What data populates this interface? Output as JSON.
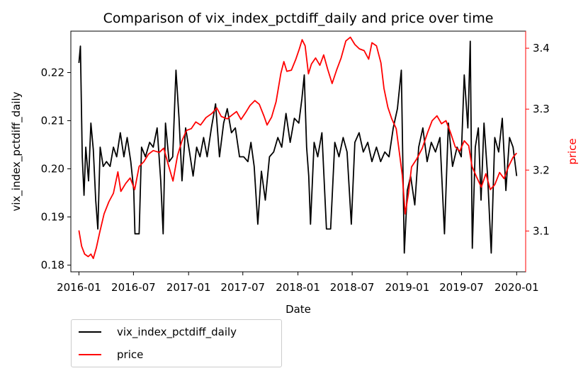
{
  "chart_data": {
    "type": "line",
    "title": "Comparison of vix_index_pctdiff_daily and price over time",
    "xlabel": "Date",
    "ylabel_left": "vix_index_pctdiff_daily",
    "ylabel_right": "price",
    "x_ticks": [
      "2016-01",
      "2016-07",
      "2017-01",
      "2017-07",
      "2018-01",
      "2018-07",
      "2019-01",
      "2019-07",
      "2020-01"
    ],
    "y_left_ticks": [
      "0.18",
      "0.19",
      "0.20",
      "0.21",
      "0.22"
    ],
    "y_right_ticks": [
      "3.1",
      "3.2",
      "3.3",
      "3.4"
    ],
    "x_range": [
      "2015-12-05",
      "2020-01-31"
    ],
    "y_left_range": [
      0.1786,
      0.2286
    ],
    "y_right_range": [
      3.033,
      3.428
    ],
    "legend_position": "below-left",
    "grid": false,
    "colors": {
      "vix_index_pctdiff_daily": "#000000",
      "price": "#ff0000",
      "right_axis": "#ff0000"
    },
    "series": [
      {
        "name": "vix_index_pctdiff_daily",
        "axis": "left",
        "color": "#000000",
        "points": [
          [
            "2016-01-01",
            0.222
          ],
          [
            "2016-01-06",
            0.2255
          ],
          [
            "2016-01-12",
            0.2025
          ],
          [
            "2016-01-18",
            0.1945
          ],
          [
            "2016-01-24",
            0.2045
          ],
          [
            "2016-02-02",
            0.1975
          ],
          [
            "2016-02-10",
            0.2095
          ],
          [
            "2016-02-18",
            0.204
          ],
          [
            "2016-02-26",
            0.1935
          ],
          [
            "2016-03-04",
            0.1875
          ],
          [
            "2016-03-12",
            0.2045
          ],
          [
            "2016-03-22",
            0.2005
          ],
          [
            "2016-04-02",
            0.2015
          ],
          [
            "2016-04-14",
            0.2005
          ],
          [
            "2016-04-25",
            0.2045
          ],
          [
            "2016-05-06",
            0.2025
          ],
          [
            "2016-05-18",
            0.2075
          ],
          [
            "2016-05-30",
            0.2025
          ],
          [
            "2016-06-10",
            0.2065
          ],
          [
            "2016-06-22",
            0.2015
          ],
          [
            "2016-07-02",
            0.1955
          ],
          [
            "2016-07-06",
            0.1865
          ],
          [
            "2016-07-20",
            0.1865
          ],
          [
            "2016-07-28",
            0.2045
          ],
          [
            "2016-08-10",
            0.2025
          ],
          [
            "2016-08-24",
            0.2055
          ],
          [
            "2016-09-05",
            0.2045
          ],
          [
            "2016-09-18",
            0.2085
          ],
          [
            "2016-09-30",
            0.1975
          ],
          [
            "2016-10-08",
            0.1865
          ],
          [
            "2016-10-16",
            0.2095
          ],
          [
            "2016-10-28",
            0.2015
          ],
          [
            "2016-11-09",
            0.2025
          ],
          [
            "2016-11-20",
            0.2205
          ],
          [
            "2016-11-30",
            0.2105
          ],
          [
            "2016-12-10",
            0.1975
          ],
          [
            "2016-12-22",
            0.2085
          ],
          [
            "2017-01-04",
            0.2035
          ],
          [
            "2017-01-16",
            0.1985
          ],
          [
            "2017-01-28",
            0.2045
          ],
          [
            "2017-02-08",
            0.2025
          ],
          [
            "2017-02-20",
            0.2065
          ],
          [
            "2017-03-04",
            0.2025
          ],
          [
            "2017-03-18",
            0.2085
          ],
          [
            "2017-04-01",
            0.2135
          ],
          [
            "2017-04-14",
            0.2025
          ],
          [
            "2017-04-28",
            0.2095
          ],
          [
            "2017-05-10",
            0.2125
          ],
          [
            "2017-05-24",
            0.2075
          ],
          [
            "2017-06-06",
            0.2085
          ],
          [
            "2017-06-20",
            0.2025
          ],
          [
            "2017-07-04",
            0.2025
          ],
          [
            "2017-07-18",
            0.2015
          ],
          [
            "2017-07-28",
            0.2055
          ],
          [
            "2017-08-08",
            0.2005
          ],
          [
            "2017-08-20",
            0.1885
          ],
          [
            "2017-09-01",
            0.1995
          ],
          [
            "2017-09-14",
            0.1935
          ],
          [
            "2017-09-28",
            0.2025
          ],
          [
            "2017-10-12",
            0.2035
          ],
          [
            "2017-10-26",
            0.2065
          ],
          [
            "2017-11-08",
            0.2045
          ],
          [
            "2017-11-22",
            0.2115
          ],
          [
            "2017-12-06",
            0.2055
          ],
          [
            "2017-12-20",
            0.2105
          ],
          [
            "2018-01-04",
            0.2095
          ],
          [
            "2018-01-14",
            0.2145
          ],
          [
            "2018-01-22",
            0.2195
          ],
          [
            "2018-01-30",
            0.2045
          ],
          [
            "2018-02-06",
            0.1985
          ],
          [
            "2018-02-12",
            0.1885
          ],
          [
            "2018-02-24",
            0.2055
          ],
          [
            "2018-03-08",
            0.2025
          ],
          [
            "2018-03-22",
            0.2075
          ],
          [
            "2018-04-06",
            0.1875
          ],
          [
            "2018-04-20",
            0.1875
          ],
          [
            "2018-05-04",
            0.2055
          ],
          [
            "2018-05-18",
            0.2025
          ],
          [
            "2018-06-01",
            0.2065
          ],
          [
            "2018-06-14",
            0.2035
          ],
          [
            "2018-06-28",
            0.1885
          ],
          [
            "2018-07-10",
            0.2055
          ],
          [
            "2018-07-24",
            0.2075
          ],
          [
            "2018-08-07",
            0.2035
          ],
          [
            "2018-08-22",
            0.2055
          ],
          [
            "2018-09-05",
            0.2015
          ],
          [
            "2018-09-20",
            0.2045
          ],
          [
            "2018-10-04",
            0.2015
          ],
          [
            "2018-10-18",
            0.2035
          ],
          [
            "2018-11-01",
            0.2025
          ],
          [
            "2018-11-15",
            0.2085
          ],
          [
            "2018-11-29",
            0.2125
          ],
          [
            "2018-12-12",
            0.2205
          ],
          [
            "2018-12-22",
            0.1825
          ],
          [
            "2019-01-01",
            0.1955
          ],
          [
            "2019-01-12",
            0.1985
          ],
          [
            "2019-01-26",
            0.1925
          ],
          [
            "2019-02-08",
            0.2045
          ],
          [
            "2019-02-22",
            0.2085
          ],
          [
            "2019-03-08",
            0.2015
          ],
          [
            "2019-03-22",
            0.2055
          ],
          [
            "2019-04-05",
            0.2035
          ],
          [
            "2019-04-20",
            0.2065
          ],
          [
            "2019-05-05",
            0.1865
          ],
          [
            "2019-05-18",
            0.2095
          ],
          [
            "2019-06-01",
            0.2005
          ],
          [
            "2019-06-16",
            0.2045
          ],
          [
            "2019-06-30",
            0.2025
          ],
          [
            "2019-07-10",
            0.2195
          ],
          [
            "2019-07-22",
            0.2085
          ],
          [
            "2019-07-30",
            0.2265
          ],
          [
            "2019-08-06",
            0.1835
          ],
          [
            "2019-08-16",
            0.2045
          ],
          [
            "2019-08-26",
            0.2085
          ],
          [
            "2019-09-04",
            0.1935
          ],
          [
            "2019-09-14",
            0.2095
          ],
          [
            "2019-09-26",
            0.1985
          ],
          [
            "2019-10-08",
            0.1825
          ],
          [
            "2019-10-20",
            0.2065
          ],
          [
            "2019-11-02",
            0.2035
          ],
          [
            "2019-11-14",
            0.2105
          ],
          [
            "2019-11-26",
            0.1955
          ],
          [
            "2019-12-08",
            0.2065
          ],
          [
            "2019-12-20",
            0.2045
          ],
          [
            "2020-01-01",
            0.1985
          ]
        ]
      },
      {
        "name": "price",
        "axis": "right",
        "color": "#ff0000",
        "points": [
          [
            "2016-01-01",
            3.101
          ],
          [
            "2016-01-10",
            3.075
          ],
          [
            "2016-01-20",
            3.062
          ],
          [
            "2016-02-01",
            3.058
          ],
          [
            "2016-02-10",
            3.062
          ],
          [
            "2016-02-18",
            3.055
          ],
          [
            "2016-02-28",
            3.072
          ],
          [
            "2016-03-10",
            3.097
          ],
          [
            "2016-03-25",
            3.128
          ],
          [
            "2016-04-10",
            3.148
          ],
          [
            "2016-04-25",
            3.162
          ],
          [
            "2016-05-10",
            3.197
          ],
          [
            "2016-05-20",
            3.165
          ],
          [
            "2016-06-05",
            3.178
          ],
          [
            "2016-06-20",
            3.187
          ],
          [
            "2016-07-05",
            3.168
          ],
          [
            "2016-07-20",
            3.206
          ],
          [
            "2016-08-05",
            3.214
          ],
          [
            "2016-08-20",
            3.226
          ],
          [
            "2016-09-05",
            3.232
          ],
          [
            "2016-09-25",
            3.229
          ],
          [
            "2016-10-10",
            3.236
          ],
          [
            "2016-10-25",
            3.209
          ],
          [
            "2016-11-10",
            3.182
          ],
          [
            "2016-11-25",
            3.224
          ],
          [
            "2016-12-10",
            3.248
          ],
          [
            "2016-12-25",
            3.265
          ],
          [
            "2017-01-10",
            3.268
          ],
          [
            "2017-01-25",
            3.279
          ],
          [
            "2017-02-10",
            3.274
          ],
          [
            "2017-02-28",
            3.286
          ],
          [
            "2017-03-20",
            3.293
          ],
          [
            "2017-04-05",
            3.302
          ],
          [
            "2017-04-20",
            3.288
          ],
          [
            "2017-05-10",
            3.284
          ],
          [
            "2017-05-25",
            3.29
          ],
          [
            "2017-06-10",
            3.296
          ],
          [
            "2017-06-25",
            3.283
          ],
          [
            "2017-07-10",
            3.294
          ],
          [
            "2017-07-25",
            3.306
          ],
          [
            "2017-08-10",
            3.314
          ],
          [
            "2017-08-25",
            3.308
          ],
          [
            "2017-09-10",
            3.288
          ],
          [
            "2017-09-20",
            3.274
          ],
          [
            "2017-10-05",
            3.287
          ],
          [
            "2017-10-20",
            3.312
          ],
          [
            "2017-11-05",
            3.359
          ],
          [
            "2017-11-15",
            3.378
          ],
          [
            "2017-11-25",
            3.362
          ],
          [
            "2017-12-10",
            3.364
          ],
          [
            "2017-12-25",
            3.382
          ],
          [
            "2018-01-05",
            3.398
          ],
          [
            "2018-01-15",
            3.414
          ],
          [
            "2018-01-25",
            3.404
          ],
          [
            "2018-02-05",
            3.358
          ],
          [
            "2018-02-15",
            3.374
          ],
          [
            "2018-03-01",
            3.384
          ],
          [
            "2018-03-15",
            3.372
          ],
          [
            "2018-03-28",
            3.389
          ],
          [
            "2018-04-10",
            3.366
          ],
          [
            "2018-04-25",
            3.342
          ],
          [
            "2018-05-10",
            3.364
          ],
          [
            "2018-05-25",
            3.384
          ],
          [
            "2018-06-10",
            3.412
          ],
          [
            "2018-06-25",
            3.418
          ],
          [
            "2018-07-10",
            3.406
          ],
          [
            "2018-07-25",
            3.399
          ],
          [
            "2018-08-10",
            3.396
          ],
          [
            "2018-08-25",
            3.382
          ],
          [
            "2018-09-05",
            3.409
          ],
          [
            "2018-09-20",
            3.404
          ],
          [
            "2018-10-05",
            3.376
          ],
          [
            "2018-10-15",
            3.334
          ],
          [
            "2018-10-28",
            3.303
          ],
          [
            "2018-11-10",
            3.284
          ],
          [
            "2018-11-25",
            3.268
          ],
          [
            "2018-12-05",
            3.231
          ],
          [
            "2018-12-15",
            3.192
          ],
          [
            "2018-12-25",
            3.128
          ],
          [
            "2019-01-05",
            3.162
          ],
          [
            "2019-01-15",
            3.205
          ],
          [
            "2019-02-01",
            3.218
          ],
          [
            "2019-02-20",
            3.236
          ],
          [
            "2019-03-10",
            3.262
          ],
          [
            "2019-03-25",
            3.281
          ],
          [
            "2019-04-10",
            3.289
          ],
          [
            "2019-04-25",
            3.276
          ],
          [
            "2019-05-10",
            3.281
          ],
          [
            "2019-05-25",
            3.262
          ],
          [
            "2019-06-10",
            3.238
          ],
          [
            "2019-06-25",
            3.231
          ],
          [
            "2019-07-10",
            3.248
          ],
          [
            "2019-07-25",
            3.24
          ],
          [
            "2019-08-05",
            3.206
          ],
          [
            "2019-08-20",
            3.189
          ],
          [
            "2019-09-05",
            3.172
          ],
          [
            "2019-09-20",
            3.194
          ],
          [
            "2019-10-05",
            3.168
          ],
          [
            "2019-10-20",
            3.176
          ],
          [
            "2019-11-05",
            3.196
          ],
          [
            "2019-11-20",
            3.186
          ],
          [
            "2019-12-05",
            3.206
          ],
          [
            "2019-12-20",
            3.221
          ],
          [
            "2020-01-01",
            3.228
          ]
        ]
      }
    ]
  }
}
